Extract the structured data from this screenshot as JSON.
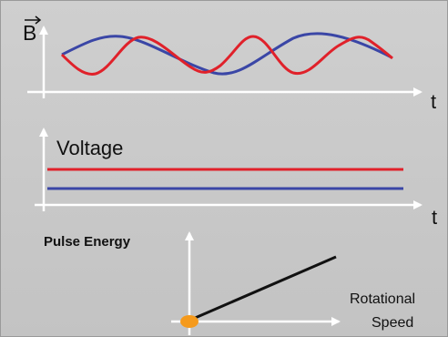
{
  "panel1": {
    "y_label": "B",
    "x_label": "t",
    "colors": {
      "red": "#e0212a",
      "blue": "#3a46a6"
    }
  },
  "panel2": {
    "y_label": "Voltage",
    "x_label": "t",
    "colors": {
      "red": "#e0212a",
      "blue": "#3a46a6"
    }
  },
  "panel3": {
    "y_label": "Pulse Energy",
    "x_label_line1": "Rotational",
    "x_label_line2": "Speed",
    "line_color": "#111111",
    "dot_color": "#f59a1c"
  }
}
